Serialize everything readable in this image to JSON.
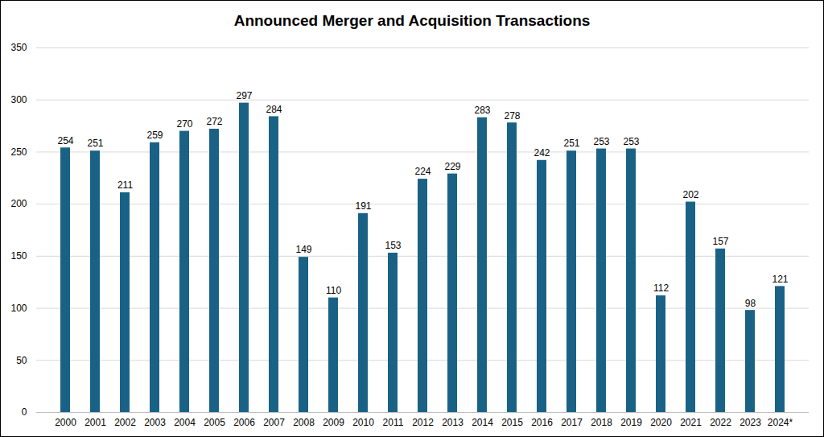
{
  "chart_data": {
    "type": "bar",
    "title": "Announced Merger and Acquisition Transactions",
    "categories": [
      "2000",
      "2001",
      "2002",
      "2003",
      "2004",
      "2005",
      "2006",
      "2007",
      "2008",
      "2009",
      "2010",
      "2011",
      "2012",
      "2013",
      "2014",
      "2015",
      "2016",
      "2017",
      "2018",
      "2019",
      "2020",
      "2021",
      "2022",
      "2023",
      "2024*"
    ],
    "values": [
      254,
      251,
      211,
      259,
      270,
      272,
      297,
      284,
      149,
      110,
      191,
      153,
      224,
      229,
      283,
      278,
      242,
      251,
      253,
      253,
      112,
      202,
      157,
      98,
      121
    ],
    "color": "#1a6285",
    "ylim": [
      0,
      350
    ],
    "yticks": [
      0,
      50,
      100,
      150,
      200,
      250,
      300,
      350
    ],
    "grid": true,
    "data_labels": true
  }
}
